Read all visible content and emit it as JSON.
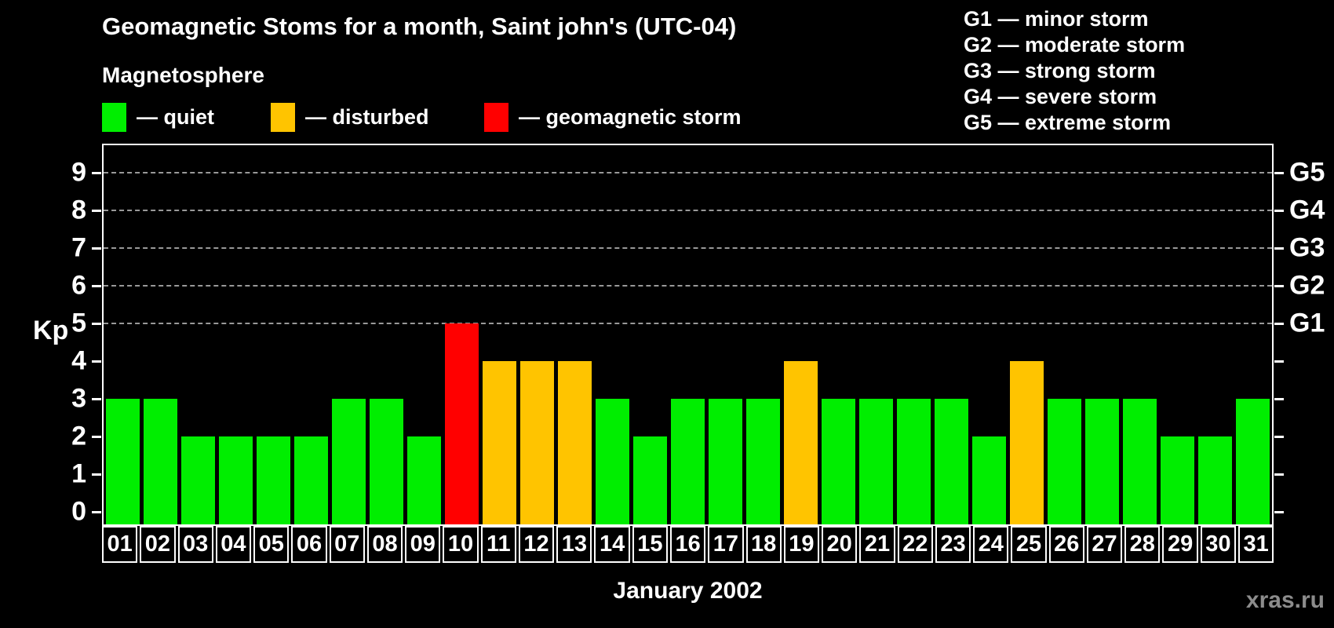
{
  "title": "Geomagnetic Stoms for a month, Saint john's (UTC-04)",
  "legend": {
    "title": "Magnetosphere",
    "items": [
      {
        "key": "quiet",
        "label": "— quiet",
        "color": "#00EE00"
      },
      {
        "key": "disturbed",
        "label": "— disturbed",
        "color": "#FFC400"
      },
      {
        "key": "storm",
        "label": "— geomagnetic storm",
        "color": "#FF0000"
      }
    ]
  },
  "g_scale_legend": [
    "G1 — minor storm",
    "G2 — moderate storm",
    "G3 — strong storm",
    "G4 — severe storm",
    "G5 — extreme storm"
  ],
  "y_axis": {
    "label": "Kp",
    "ticks": [
      "0",
      "1",
      "2",
      "3",
      "4",
      "5",
      "6",
      "7",
      "8",
      "9"
    ],
    "grid_levels": [
      5,
      6,
      7,
      8,
      9
    ]
  },
  "right_axis": {
    "ticks": [
      {
        "kp": 5,
        "label": "G1"
      },
      {
        "kp": 6,
        "label": "G2"
      },
      {
        "kp": 7,
        "label": "G3"
      },
      {
        "kp": 8,
        "label": "G4"
      },
      {
        "kp": 9,
        "label": "G5"
      }
    ]
  },
  "xlabel": "January 2002",
  "watermark": "xras.ru",
  "colors": {
    "background": "#000000",
    "quiet": "#00EE00",
    "disturbed": "#FFC400",
    "storm": "#FF0000",
    "grid": "#999999",
    "frame": "#FFFFFF",
    "text": "#FFFFFF",
    "watermark": "#8C8C8C"
  },
  "color_rules": {
    "disturbed_min": 4,
    "storm_min": 5
  },
  "chart_data": {
    "type": "bar",
    "title": "Geomagnetic Stoms for a month, Saint john's (UTC-04)",
    "xlabel": "January 2002",
    "ylabel": "Kp",
    "ylim": [
      0,
      9
    ],
    "grid": "dashed horizontal lines at Kp 5,6,7,8,9",
    "legend_position": "top-left",
    "right_axis_labels": [
      "G1",
      "G2",
      "G3",
      "G4",
      "G5"
    ],
    "categories": [
      "01",
      "02",
      "03",
      "04",
      "05",
      "06",
      "07",
      "08",
      "09",
      "10",
      "11",
      "12",
      "13",
      "14",
      "15",
      "16",
      "17",
      "18",
      "19",
      "20",
      "21",
      "22",
      "23",
      "24",
      "25",
      "26",
      "27",
      "28",
      "29",
      "30",
      "31"
    ],
    "values": [
      3,
      3,
      2,
      2,
      2,
      2,
      3,
      3,
      2,
      5,
      4,
      4,
      4,
      3,
      2,
      3,
      3,
      3,
      4,
      3,
      3,
      3,
      3,
      2,
      4,
      3,
      3,
      3,
      2,
      2,
      3
    ],
    "value_classes": [
      "quiet",
      "quiet",
      "quiet",
      "quiet",
      "quiet",
      "quiet",
      "quiet",
      "quiet",
      "quiet",
      "storm",
      "disturbed",
      "disturbed",
      "disturbed",
      "quiet",
      "quiet",
      "quiet",
      "quiet",
      "quiet",
      "disturbed",
      "quiet",
      "quiet",
      "quiet",
      "quiet",
      "quiet",
      "disturbed",
      "quiet",
      "quiet",
      "quiet",
      "quiet",
      "quiet",
      "quiet"
    ]
  }
}
